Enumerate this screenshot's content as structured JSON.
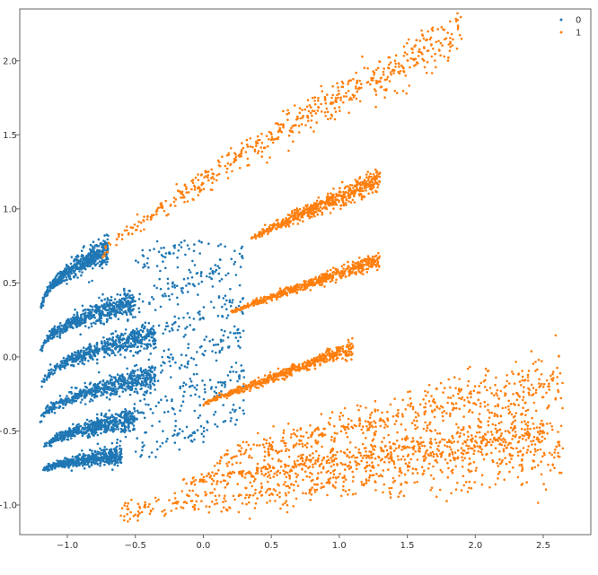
{
  "chart_data": {
    "type": "scatter",
    "title": "",
    "xlabel": "",
    "ylabel": "",
    "xlim": [
      -1.35,
      2.85
    ],
    "ylim": [
      -1.2,
      2.35
    ],
    "xticks": [
      -1.0,
      -0.5,
      0.0,
      0.5,
      1.0,
      1.5,
      2.0,
      2.5
    ],
    "xtick_labels": [
      "−1.0",
      "−0.5",
      "0.0",
      "0.5",
      "1.0",
      "1.5",
      "2.0",
      "2.5"
    ],
    "yticks": [
      -1.0,
      -0.5,
      0.0,
      0.5,
      1.0,
      1.5,
      2.0
    ],
    "ytick_labels": [
      "−1.0",
      "−0.5",
      "0.0",
      "0.5",
      "1.0",
      "1.5",
      "2.0"
    ],
    "grid": false,
    "legend": {
      "placement": "top-right",
      "entries": [
        "0",
        "1"
      ]
    },
    "series": [
      {
        "name": "0",
        "color": "#1f77b4",
        "bands": [
          {
            "x": [
              -1.2,
              -0.7
            ],
            "y": [
              0.25,
              0.72
            ],
            "curve": 0.6,
            "spread": 0.035
          },
          {
            "x": [
              -1.2,
              -0.5
            ],
            "y": [
              -0.02,
              0.37
            ],
            "curve": 0.6,
            "spread": 0.035
          },
          {
            "x": [
              -1.2,
              -0.35
            ],
            "y": [
              -0.26,
              0.15
            ],
            "curve": 0.6,
            "spread": 0.035
          },
          {
            "x": [
              -1.2,
              -0.35
            ],
            "y": [
              -0.46,
              -0.13
            ],
            "curve": 0.55,
            "spread": 0.035
          },
          {
            "x": [
              -1.18,
              -0.5
            ],
            "y": [
              -0.63,
              -0.42
            ],
            "curve": 0.5,
            "spread": 0.03
          },
          {
            "x": [
              -1.18,
              -0.6
            ],
            "y": [
              -0.77,
              -0.66
            ],
            "curve": 0.4,
            "spread": 0.025
          }
        ],
        "scatter_regions": [
          {
            "x": [
              -0.5,
              0.3
            ],
            "y": [
              -0.65,
              0.75
            ],
            "count": 520
          }
        ]
      },
      {
        "name": "1",
        "color": "#ff7f0e",
        "bands": [
          {
            "x": [
              -0.75,
              1.9
            ],
            "y": [
              0.68,
              2.2
            ],
            "curve": 0.15,
            "spread": 0.06
          },
          {
            "x": [
              0.35,
              1.3
            ],
            "y": [
              0.8,
              1.2
            ],
            "curve": 0.05,
            "spread": 0.03
          },
          {
            "x": [
              0.2,
              1.3
            ],
            "y": [
              0.3,
              0.66
            ],
            "curve": 0.05,
            "spread": 0.02
          },
          {
            "x": [
              0.0,
              1.1
            ],
            "y": [
              -0.32,
              0.06
            ],
            "curve": 0.05,
            "spread": 0.02
          },
          {
            "x": [
              0.08,
              2.65
            ],
            "y": [
              -0.7,
              -0.15
            ],
            "curve": 0.05,
            "spread": 0.09
          },
          {
            "x": [
              -0.15,
              2.5
            ],
            "y": [
              -0.85,
              -0.5
            ],
            "curve": 0.05,
            "spread": 0.05
          },
          {
            "x": [
              -0.62,
              2.65
            ],
            "y": [
              -1.06,
              -0.62
            ],
            "curve": 0.05,
            "spread": 0.09
          }
        ],
        "scatter_regions": []
      }
    ]
  }
}
